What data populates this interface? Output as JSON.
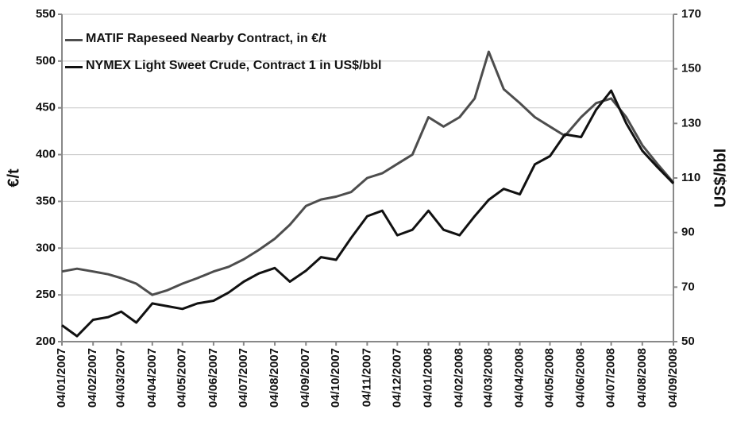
{
  "chart_data": {
    "type": "line",
    "x": [
      "04/01/2007",
      "19/01/2007",
      "04/02/2007",
      "19/02/2007",
      "04/03/2007",
      "19/03/2007",
      "04/04/2007",
      "19/04/2007",
      "04/05/2007",
      "19/05/2007",
      "04/06/2007",
      "19/06/2007",
      "04/07/2007",
      "19/07/2007",
      "04/08/2007",
      "19/08/2007",
      "04/09/2007",
      "19/09/2007",
      "04/10/2007",
      "19/10/2007",
      "04/11/2007",
      "19/11/2007",
      "04/12/2007",
      "19/12/2007",
      "04/01/2008",
      "19/01/2008",
      "04/02/2008",
      "19/02/2008",
      "04/03/2008",
      "19/03/2008",
      "04/04/2008",
      "19/04/2008",
      "04/05/2008",
      "19/05/2008",
      "04/06/2008",
      "19/06/2008",
      "04/07/2008",
      "19/07/2008",
      "04/08/2008",
      "19/08/2008",
      "04/09/2008"
    ],
    "series": [
      {
        "name": "MATIF Rapeseed Nearby Contract, in €/t",
        "color": "#4d4d4d",
        "values": [
          275,
          278,
          275,
          272,
          268,
          262,
          250,
          255,
          262,
          268,
          275,
          280,
          288,
          298,
          310,
          325,
          345,
          352,
          355,
          360,
          375,
          380,
          390,
          400,
          440,
          430,
          440,
          460,
          510,
          470,
          455,
          440,
          430,
          420,
          440,
          455,
          460,
          440,
          410,
          390,
          370
        ]
      },
      {
        "name": "NYMEX Light Sweet Crude, Contract 1 in US$/bbl",
        "color": "#111111",
        "axis": "y2",
        "values": [
          56,
          52,
          58,
          59,
          61,
          57,
          64,
          63,
          62,
          64,
          65,
          68,
          72,
          75,
          77,
          72,
          76,
          81,
          80,
          88,
          96,
          98,
          89,
          91,
          98,
          91,
          89,
          96,
          102,
          106,
          104,
          115,
          118,
          126,
          125,
          135,
          142,
          130,
          120,
          114,
          108
        ]
      }
    ],
    "xticks": [
      "04/01/2007",
      "04/02/2007",
      "04/03/2007",
      "04/04/2007",
      "04/05/2007",
      "04/06/2007",
      "04/07/2007",
      "04/08/2007",
      "04/09/2007",
      "04/10/2007",
      "04/11/2007",
      "04/12/2007",
      "04/01/2008",
      "04/02/2008",
      "04/03/2008",
      "04/04/2008",
      "04/05/2008",
      "04/06/2008",
      "04/07/2008",
      "04/08/2008",
      "04/09/2008"
    ],
    "ylabel": "€/t",
    "y2label": "US$/bbl",
    "ylim": [
      200,
      550
    ],
    "yticks": [
      200,
      250,
      300,
      350,
      400,
      450,
      500,
      550
    ],
    "y2lim": [
      50,
      170
    ],
    "y2ticks": [
      50,
      70,
      90,
      110,
      130,
      150,
      170
    ],
    "grid": true,
    "legend": "upper left"
  }
}
